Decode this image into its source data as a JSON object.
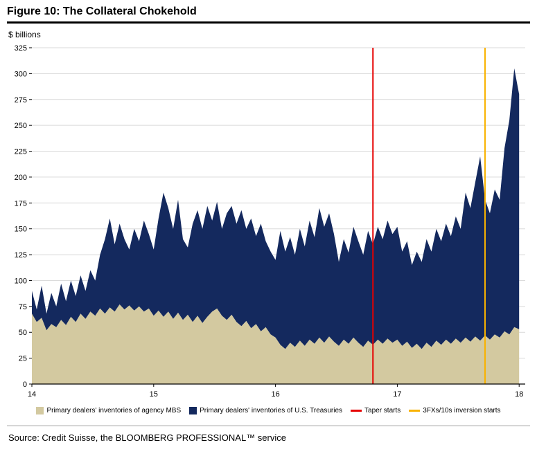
{
  "figure": {
    "title": "Figure 10: The Collateral Chokehold",
    "units_label": "$ billions",
    "source": "Source: Credit Suisse, the BLOOMBERG PROFESSIONAL™ service"
  },
  "colors": {
    "mbs": "#d3c9a0",
    "treasuries": "#14295e",
    "taper": "#e60000",
    "inversion": "#f9b200",
    "grid": "#d9d9d9",
    "axis": "#000000"
  },
  "chart_data": {
    "type": "area",
    "stacked": true,
    "title": "Figure 10: The Collateral Chokehold",
    "ylabel": "$ billions",
    "xlabel": "",
    "grid": true,
    "legend_position": "bottom",
    "ylim": [
      0,
      325
    ],
    "ytick_step": 25,
    "xlim": [
      14,
      18.05
    ],
    "xticks": [
      14,
      15,
      16,
      17,
      18
    ],
    "x": [
      14.0,
      14.04,
      14.08,
      14.12,
      14.16,
      14.2,
      14.24,
      14.28,
      14.32,
      14.36,
      14.4,
      14.44,
      14.48,
      14.52,
      14.56,
      14.6,
      14.64,
      14.68,
      14.72,
      14.76,
      14.8,
      14.84,
      14.88,
      14.92,
      14.96,
      15.0,
      15.04,
      15.08,
      15.12,
      15.16,
      15.2,
      15.24,
      15.28,
      15.32,
      15.36,
      15.4,
      15.44,
      15.48,
      15.52,
      15.56,
      15.6,
      15.64,
      15.68,
      15.72,
      15.76,
      15.8,
      15.84,
      15.88,
      15.92,
      15.96,
      16.0,
      16.04,
      16.08,
      16.12,
      16.16,
      16.2,
      16.24,
      16.28,
      16.32,
      16.36,
      16.4,
      16.44,
      16.48,
      16.52,
      16.56,
      16.6,
      16.64,
      16.68,
      16.72,
      16.76,
      16.8,
      16.84,
      16.88,
      16.92,
      16.96,
      17.0,
      17.04,
      17.08,
      17.12,
      17.16,
      17.2,
      17.24,
      17.28,
      17.32,
      17.36,
      17.4,
      17.44,
      17.48,
      17.52,
      17.56,
      17.6,
      17.64,
      17.68,
      17.72,
      17.76,
      17.8,
      17.84,
      17.88,
      17.92,
      17.96,
      18.0
    ],
    "series": [
      {
        "name": "Primary dealers' inventories of agency MBS",
        "color_key": "mbs",
        "values": [
          68,
          60,
          64,
          52,
          58,
          55,
          62,
          57,
          65,
          60,
          68,
          63,
          70,
          66,
          73,
          68,
          74,
          70,
          77,
          72,
          76,
          71,
          75,
          70,
          73,
          66,
          71,
          65,
          70,
          63,
          69,
          62,
          67,
          60,
          66,
          59,
          65,
          70,
          73,
          66,
          62,
          67,
          60,
          56,
          61,
          54,
          58,
          51,
          55,
          48,
          45,
          38,
          34,
          40,
          36,
          42,
          37,
          43,
          39,
          45,
          40,
          46,
          41,
          37,
          43,
          39,
          45,
          40,
          36,
          42,
          38,
          43,
          39,
          44,
          40,
          43,
          37,
          41,
          35,
          39,
          34,
          40,
          36,
          42,
          38,
          43,
          39,
          44,
          40,
          45,
          41,
          46,
          42,
          47,
          43,
          48,
          45,
          51,
          48,
          55,
          53
        ]
      },
      {
        "name": "Primary dealers' inventories of U.S. Treasuries",
        "color_key": "treasuries",
        "values": [
          22,
          12,
          31,
          16,
          30,
          20,
          35,
          23,
          35,
          25,
          37,
          27,
          40,
          34,
          52,
          72,
          86,
          65,
          78,
          68,
          54,
          79,
          63,
          88,
          72,
          64,
          89,
          120,
          100,
          87,
          109,
          78,
          65,
          95,
          102,
          91,
          107,
          88,
          103,
          84,
          103,
          105,
          95,
          112,
          89,
          106,
          85,
          104,
          83,
          80,
          75,
          110,
          94,
          102,
          89,
          108,
          96,
          115,
          103,
          125,
          112,
          119,
          104,
          81,
          97,
          88,
          107,
          98,
          89,
          106,
          97,
          109,
          101,
          114,
          105,
          109,
          91,
          97,
          80,
          89,
          84,
          100,
          92,
          108,
          100,
          112,
          104,
          118,
          110,
          140,
          129,
          149,
          178,
          131,
          122,
          140,
          133,
          177,
          207,
          250,
          227
        ]
      }
    ],
    "vlines": [
      {
        "x": 16.8,
        "label": "Taper starts",
        "color_key": "taper"
      },
      {
        "x": 17.72,
        "label": "3FXs/10s inversion starts",
        "color_key": "inversion"
      }
    ]
  }
}
